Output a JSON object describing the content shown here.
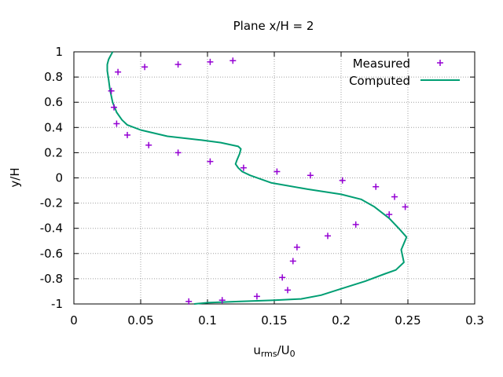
{
  "chart_data": {
    "type": "scatter",
    "title": "Plane x/H = 2",
    "xlabel": {
      "main": "u",
      "sub": "rms",
      "mid": "/U",
      "sub2": "0"
    },
    "ylabel": "y/H",
    "xlim": [
      0,
      0.3
    ],
    "ylim": [
      -1,
      1
    ],
    "xticks": [
      0,
      0.05,
      0.1,
      0.15,
      0.2,
      0.25,
      0.3
    ],
    "yticks": [
      -1,
      -0.8,
      -0.6,
      -0.4,
      -0.2,
      0,
      0.2,
      0.4,
      0.6,
      0.8,
      1
    ],
    "xtick_labels": [
      "0",
      "0.05",
      "0.1",
      "0.15",
      "0.2",
      "0.25",
      "0.3"
    ],
    "ytick_labels": [
      "-1",
      "-0.8",
      "-0.6",
      "-0.4",
      "-0.2",
      "0",
      "0.2",
      "0.4",
      "0.6",
      "0.8",
      "1"
    ],
    "grid": true,
    "legend_position": "top-right",
    "series": [
      {
        "name": "Measured",
        "style": "points",
        "marker": "plus",
        "color": "#9400d3",
        "points": [
          [
            0.119,
            0.93
          ],
          [
            0.102,
            0.92
          ],
          [
            0.078,
            0.9
          ],
          [
            0.053,
            0.88
          ],
          [
            0.033,
            0.84
          ],
          [
            0.028,
            0.69
          ],
          [
            0.03,
            0.56
          ],
          [
            0.032,
            0.43
          ],
          [
            0.04,
            0.34
          ],
          [
            0.056,
            0.26
          ],
          [
            0.078,
            0.2
          ],
          [
            0.102,
            0.13
          ],
          [
            0.127,
            0.08
          ],
          [
            0.152,
            0.05
          ],
          [
            0.177,
            0.02
          ],
          [
            0.201,
            -0.02
          ],
          [
            0.226,
            -0.07
          ],
          [
            0.24,
            -0.15
          ],
          [
            0.248,
            -0.23
          ],
          [
            0.236,
            -0.29
          ],
          [
            0.211,
            -0.37
          ],
          [
            0.19,
            -0.46
          ],
          [
            0.167,
            -0.55
          ],
          [
            0.164,
            -0.66
          ],
          [
            0.156,
            -0.79
          ],
          [
            0.16,
            -0.89
          ],
          [
            0.137,
            -0.94
          ],
          [
            0.111,
            -0.97
          ],
          [
            0.086,
            -0.98
          ]
        ]
      },
      {
        "name": "Computed",
        "style": "line",
        "color": "#009e73",
        "points": [
          [
            0.029,
            1.0
          ],
          [
            0.028,
            0.98
          ],
          [
            0.027,
            0.96
          ],
          [
            0.026,
            0.94
          ],
          [
            0.025,
            0.9
          ],
          [
            0.025,
            0.85
          ],
          [
            0.026,
            0.78
          ],
          [
            0.027,
            0.7
          ],
          [
            0.029,
            0.6
          ],
          [
            0.032,
            0.52
          ],
          [
            0.036,
            0.46
          ],
          [
            0.04,
            0.42
          ],
          [
            0.05,
            0.38
          ],
          [
            0.07,
            0.33
          ],
          [
            0.095,
            0.3
          ],
          [
            0.11,
            0.28
          ],
          [
            0.123,
            0.25
          ],
          [
            0.125,
            0.23
          ],
          [
            0.124,
            0.19
          ],
          [
            0.122,
            0.14
          ],
          [
            0.121,
            0.11
          ],
          [
            0.123,
            0.08
          ],
          [
            0.126,
            0.05
          ],
          [
            0.132,
            0.02
          ],
          [
            0.148,
            -0.04
          ],
          [
            0.175,
            -0.09
          ],
          [
            0.2,
            -0.13
          ],
          [
            0.215,
            -0.17
          ],
          [
            0.225,
            -0.23
          ],
          [
            0.236,
            -0.32
          ],
          [
            0.244,
            -0.41
          ],
          [
            0.249,
            -0.47
          ],
          [
            0.247,
            -0.52
          ],
          [
            0.245,
            -0.57
          ],
          [
            0.246,
            -0.62
          ],
          [
            0.247,
            -0.67
          ],
          [
            0.241,
            -0.73
          ],
          [
            0.233,
            -0.76
          ],
          [
            0.218,
            -0.82
          ],
          [
            0.2,
            -0.88
          ],
          [
            0.185,
            -0.93
          ],
          [
            0.17,
            -0.96
          ],
          [
            0.15,
            -0.97
          ],
          [
            0.125,
            -0.98
          ],
          [
            0.1,
            -0.99
          ],
          [
            0.09,
            -1.0
          ]
        ]
      }
    ]
  }
}
